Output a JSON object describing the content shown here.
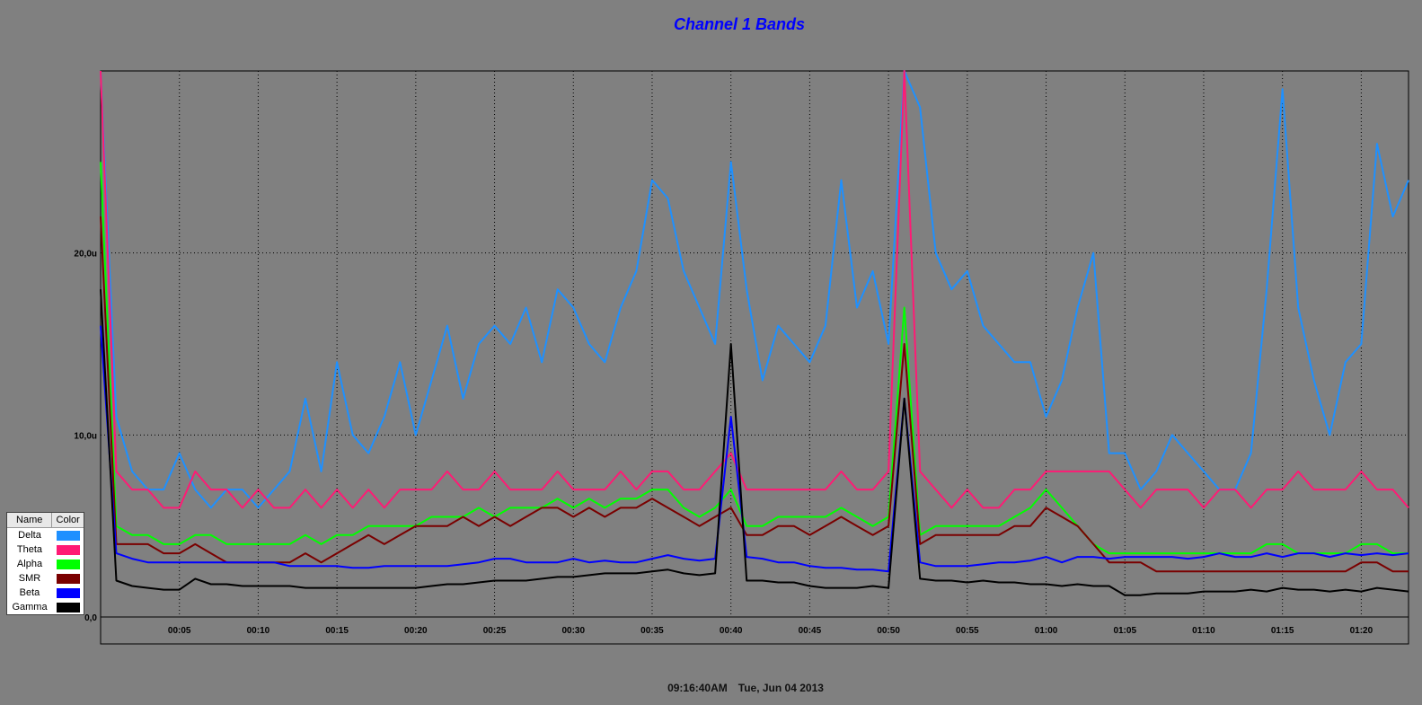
{
  "chart_data": {
    "type": "line",
    "title": "Channel 1 Bands",
    "ylim": [
      0,
      30
    ],
    "y_ticks": [
      {
        "value": 0,
        "label": "0,0"
      },
      {
        "value": 10,
        "label": "10,0u"
      },
      {
        "value": 20,
        "label": "20,0u"
      }
    ],
    "xlim": [
      0,
      83
    ],
    "x_ticks": [
      {
        "value": 5,
        "label": "00:05"
      },
      {
        "value": 10,
        "label": "00:10"
      },
      {
        "value": 15,
        "label": "00:15"
      },
      {
        "value": 20,
        "label": "00:20"
      },
      {
        "value": 25,
        "label": "00:25"
      },
      {
        "value": 30,
        "label": "00:30"
      },
      {
        "value": 35,
        "label": "00:35"
      },
      {
        "value": 40,
        "label": "00:40"
      },
      {
        "value": 45,
        "label": "00:45"
      },
      {
        "value": 50,
        "label": "00:50"
      },
      {
        "value": 55,
        "label": "00:55"
      },
      {
        "value": 60,
        "label": "01:00"
      },
      {
        "value": 65,
        "label": "01:05"
      },
      {
        "value": 70,
        "label": "01:10"
      },
      {
        "value": 75,
        "label": "01:15"
      },
      {
        "value": 80,
        "label": "01:20"
      }
    ],
    "grid": true,
    "legend_position": "bottom-left",
    "series": [
      {
        "name": "Delta",
        "color": "#1e90ff",
        "x": [
          0,
          1,
          2,
          3,
          4,
          5,
          6,
          7,
          8,
          9,
          10,
          11,
          12,
          13,
          14,
          15,
          16,
          17,
          18,
          19,
          20,
          21,
          22,
          23,
          24,
          25,
          26,
          27,
          28,
          29,
          30,
          31,
          32,
          33,
          34,
          35,
          36,
          37,
          38,
          39,
          40,
          41,
          42,
          43,
          44,
          45,
          46,
          47,
          48,
          49,
          50,
          51,
          52,
          53,
          54,
          55,
          56,
          57,
          58,
          59,
          60,
          61,
          62,
          63,
          64,
          65,
          66,
          67,
          68,
          69,
          70,
          71,
          72,
          73,
          74,
          75,
          76,
          77,
          78,
          79,
          80,
          81,
          82,
          83
        ],
        "values": [
          30,
          11,
          8,
          7,
          7,
          9,
          7,
          6,
          7,
          7,
          6,
          7,
          8,
          12,
          8,
          14,
          10,
          9,
          11,
          14,
          10,
          13,
          16,
          12,
          15,
          16,
          15,
          17,
          14,
          18,
          17,
          15,
          14,
          17,
          19,
          24,
          23,
          19,
          17,
          15,
          25,
          18,
          13,
          16,
          15,
          14,
          16,
          24,
          17,
          19,
          15,
          30,
          28,
          20,
          18,
          19,
          16,
          15,
          14,
          14,
          11,
          13,
          17,
          20,
          9,
          9,
          7,
          8,
          10,
          9,
          8,
          7,
          7,
          9,
          18,
          29,
          17,
          13,
          10,
          14,
          15,
          26,
          22,
          24
        ]
      },
      {
        "name": "Theta",
        "color": "#ff1a75",
        "x": [
          0,
          1,
          2,
          3,
          4,
          5,
          6,
          7,
          8,
          9,
          10,
          11,
          12,
          13,
          14,
          15,
          16,
          17,
          18,
          19,
          20,
          21,
          22,
          23,
          24,
          25,
          26,
          27,
          28,
          29,
          30,
          31,
          32,
          33,
          34,
          35,
          36,
          37,
          38,
          39,
          40,
          41,
          42,
          43,
          44,
          45,
          46,
          47,
          48,
          49,
          50,
          51,
          52,
          53,
          54,
          55,
          56,
          57,
          58,
          59,
          60,
          61,
          62,
          63,
          64,
          65,
          66,
          67,
          68,
          69,
          70,
          71,
          72,
          73,
          74,
          75,
          76,
          77,
          78,
          79,
          80,
          81,
          82,
          83
        ],
        "values": [
          30,
          8,
          7,
          7,
          6,
          6,
          8,
          7,
          7,
          6,
          7,
          6,
          6,
          7,
          6,
          7,
          6,
          7,
          6,
          7,
          7,
          7,
          8,
          7,
          7,
          8,
          7,
          7,
          7,
          8,
          7,
          7,
          7,
          8,
          7,
          8,
          8,
          7,
          7,
          8,
          9,
          7,
          7,
          7,
          7,
          7,
          7,
          8,
          7,
          7,
          8,
          30,
          8,
          7,
          6,
          7,
          6,
          6,
          7,
          7,
          8,
          8,
          8,
          8,
          8,
          7,
          6,
          7,
          7,
          7,
          6,
          7,
          7,
          6,
          7,
          7,
          8,
          7,
          7,
          7,
          8,
          7,
          7,
          6
        ]
      },
      {
        "name": "Alpha",
        "color": "#00ff00",
        "x": [
          0,
          1,
          2,
          3,
          4,
          5,
          6,
          7,
          8,
          9,
          10,
          11,
          12,
          13,
          14,
          15,
          16,
          17,
          18,
          19,
          20,
          21,
          22,
          23,
          24,
          25,
          26,
          27,
          28,
          29,
          30,
          31,
          32,
          33,
          34,
          35,
          36,
          37,
          38,
          39,
          40,
          41,
          42,
          43,
          44,
          45,
          46,
          47,
          48,
          49,
          50,
          51,
          52,
          53,
          54,
          55,
          56,
          57,
          58,
          59,
          60,
          61,
          62,
          63,
          64,
          65,
          66,
          67,
          68,
          69,
          70,
          71,
          72,
          73,
          74,
          75,
          76,
          77,
          78,
          79,
          80,
          81,
          82,
          83
        ],
        "values": [
          25,
          5,
          4.5,
          4.5,
          4,
          4,
          4.5,
          4.5,
          4,
          4,
          4,
          4,
          4,
          4.5,
          4,
          4.5,
          4.5,
          5,
          5,
          5,
          5,
          5.5,
          5.5,
          5.5,
          6,
          5.5,
          6,
          6,
          6,
          6.5,
          6,
          6.5,
          6,
          6.5,
          6.5,
          7,
          7,
          6,
          5.5,
          6,
          7,
          5,
          5,
          5.5,
          5.5,
          5.5,
          5.5,
          6,
          5.5,
          5,
          5.5,
          17,
          4.5,
          5,
          5,
          5,
          5,
          5,
          5.5,
          6,
          7,
          6,
          5,
          4,
          3.5,
          3.5,
          3.5,
          3.5,
          3.5,
          3.5,
          3.5,
          3.5,
          3.5,
          3.5,
          4,
          4,
          3.5,
          3.5,
          3.5,
          3.5,
          4,
          4,
          3.5,
          3.5
        ]
      },
      {
        "name": "SMR",
        "color": "#7a0000",
        "x": [
          0,
          1,
          2,
          3,
          4,
          5,
          6,
          7,
          8,
          9,
          10,
          11,
          12,
          13,
          14,
          15,
          16,
          17,
          18,
          19,
          20,
          21,
          22,
          23,
          24,
          25,
          26,
          27,
          28,
          29,
          30,
          31,
          32,
          33,
          34,
          35,
          36,
          37,
          38,
          39,
          40,
          41,
          42,
          43,
          44,
          45,
          46,
          47,
          48,
          49,
          50,
          51,
          52,
          53,
          54,
          55,
          56,
          57,
          58,
          59,
          60,
          61,
          62,
          63,
          64,
          65,
          66,
          67,
          68,
          69,
          70,
          71,
          72,
          73,
          74,
          75,
          76,
          77,
          78,
          79,
          80,
          81,
          82,
          83
        ],
        "values": [
          22,
          4,
          4,
          4,
          3.5,
          3.5,
          4,
          3.5,
          3,
          3,
          3,
          3,
          3,
          3.5,
          3,
          3.5,
          4,
          4.5,
          4,
          4.5,
          5,
          5,
          5,
          5.5,
          5,
          5.5,
          5,
          5.5,
          6,
          6,
          5.5,
          6,
          5.5,
          6,
          6,
          6.5,
          6,
          5.5,
          5,
          5.5,
          6,
          4.5,
          4.5,
          5,
          5,
          4.5,
          5,
          5.5,
          5,
          4.5,
          5,
          15,
          4,
          4.5,
          4.5,
          4.5,
          4.5,
          4.5,
          5,
          5,
          6,
          5.5,
          5,
          4,
          3,
          3,
          3,
          2.5,
          2.5,
          2.5,
          2.5,
          2.5,
          2.5,
          2.5,
          2.5,
          2.5,
          2.5,
          2.5,
          2.5,
          2.5,
          3,
          3,
          2.5,
          2.5
        ]
      },
      {
        "name": "Beta",
        "color": "#0000ff",
        "x": [
          0,
          1,
          2,
          3,
          4,
          5,
          6,
          7,
          8,
          9,
          10,
          11,
          12,
          13,
          14,
          15,
          16,
          17,
          18,
          19,
          20,
          21,
          22,
          23,
          24,
          25,
          26,
          27,
          28,
          29,
          30,
          31,
          32,
          33,
          34,
          35,
          36,
          37,
          38,
          39,
          40,
          41,
          42,
          43,
          44,
          45,
          46,
          47,
          48,
          49,
          50,
          51,
          52,
          53,
          54,
          55,
          56,
          57,
          58,
          59,
          60,
          61,
          62,
          63,
          64,
          65,
          66,
          67,
          68,
          69,
          70,
          71,
          72,
          73,
          74,
          75,
          76,
          77,
          78,
          79,
          80,
          81,
          82,
          83
        ],
        "values": [
          16,
          3.5,
          3.2,
          3,
          3,
          3,
          3,
          3,
          3,
          3,
          3,
          3,
          2.8,
          2.8,
          2.8,
          2.8,
          2.7,
          2.7,
          2.8,
          2.8,
          2.8,
          2.8,
          2.8,
          2.9,
          3,
          3.2,
          3.2,
          3,
          3,
          3,
          3.2,
          3,
          3.1,
          3,
          3,
          3.2,
          3.4,
          3.2,
          3.1,
          3.2,
          11,
          3.3,
          3.2,
          3,
          3,
          2.8,
          2.7,
          2.7,
          2.6,
          2.6,
          2.5,
          12,
          3,
          2.8,
          2.8,
          2.8,
          2.9,
          3,
          3,
          3.1,
          3.3,
          3,
          3.3,
          3.3,
          3.2,
          3.3,
          3.3,
          3.3,
          3.3,
          3.2,
          3.3,
          3.5,
          3.3,
          3.3,
          3.5,
          3.3,
          3.5,
          3.5,
          3.3,
          3.5,
          3.4,
          3.5,
          3.4,
          3.5
        ]
      },
      {
        "name": "Gamma",
        "color": "#000000",
        "x": [
          0,
          1,
          2,
          3,
          4,
          5,
          6,
          7,
          8,
          9,
          10,
          11,
          12,
          13,
          14,
          15,
          16,
          17,
          18,
          19,
          20,
          21,
          22,
          23,
          24,
          25,
          26,
          27,
          28,
          29,
          30,
          31,
          32,
          33,
          34,
          35,
          36,
          37,
          38,
          39,
          40,
          41,
          42,
          43,
          44,
          45,
          46,
          47,
          48,
          49,
          50,
          51,
          52,
          53,
          54,
          55,
          56,
          57,
          58,
          59,
          60,
          61,
          62,
          63,
          64,
          65,
          66,
          67,
          68,
          69,
          70,
          71,
          72,
          73,
          74,
          75,
          76,
          77,
          78,
          79,
          80,
          81,
          82,
          83
        ],
        "values": [
          18,
          2,
          1.7,
          1.6,
          1.5,
          1.5,
          2.1,
          1.8,
          1.8,
          1.7,
          1.7,
          1.7,
          1.7,
          1.6,
          1.6,
          1.6,
          1.6,
          1.6,
          1.6,
          1.6,
          1.6,
          1.7,
          1.8,
          1.8,
          1.9,
          2,
          2,
          2,
          2.1,
          2.2,
          2.2,
          2.3,
          2.4,
          2.4,
          2.4,
          2.5,
          2.6,
          2.4,
          2.3,
          2.4,
          15,
          2,
          2,
          1.9,
          1.9,
          1.7,
          1.6,
          1.6,
          1.6,
          1.7,
          1.6,
          12,
          2.1,
          2,
          2,
          1.9,
          2,
          1.9,
          1.9,
          1.8,
          1.8,
          1.7,
          1.8,
          1.7,
          1.7,
          1.2,
          1.2,
          1.3,
          1.3,
          1.3,
          1.4,
          1.4,
          1.4,
          1.5,
          1.4,
          1.6,
          1.5,
          1.5,
          1.4,
          1.5,
          1.4,
          1.6,
          1.5,
          1.4
        ]
      }
    ]
  },
  "legend": {
    "name_header": "Name",
    "color_header": "Color",
    "items": [
      {
        "name": "Delta",
        "color": "#1e90ff"
      },
      {
        "name": "Theta",
        "color": "#ff1a75"
      },
      {
        "name": "Alpha",
        "color": "#00ff00"
      },
      {
        "name": "SMR",
        "color": "#7a0000"
      },
      {
        "name": "Beta",
        "color": "#0000ff"
      },
      {
        "name": "Gamma",
        "color": "#000000"
      }
    ]
  },
  "footer": {
    "time": "09:16:40AM",
    "date": "Tue, Jun 04 2013"
  }
}
